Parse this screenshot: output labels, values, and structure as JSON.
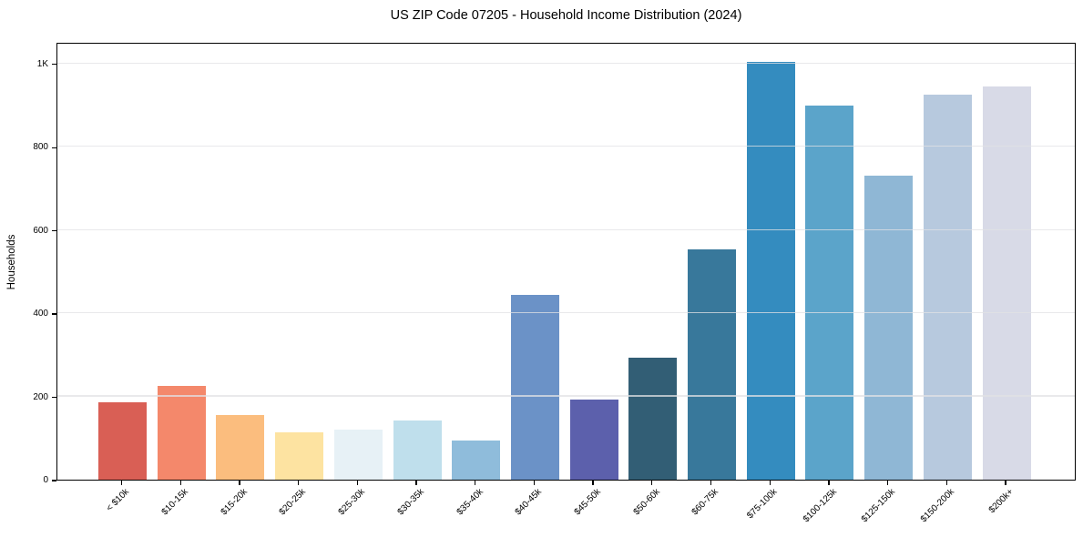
{
  "chart_data": {
    "type": "bar",
    "title": "US ZIP Code 07205 - Household Income Distribution (2024)",
    "xlabel": "",
    "ylabel": "Households",
    "categories": [
      "< $10k",
      "$10-15k",
      "$15-20k",
      "$20-25k",
      "$25-30k",
      "$30-35k",
      "$35-40k",
      "$40-45k",
      "$45-50k",
      "$50-60k",
      "$60-75k",
      "$75-100k",
      "$100-125k",
      "$125-150k",
      "$150-200k",
      "$200k+"
    ],
    "values": [
      185,
      225,
      155,
      113,
      120,
      142,
      95,
      445,
      193,
      293,
      553,
      1005,
      900,
      730,
      925,
      945
    ],
    "bar_colors": [
      "#d95f55",
      "#f4886b",
      "#fbbd7e",
      "#fde3a1",
      "#e7f1f6",
      "#bfdfec",
      "#8fbcdb",
      "#6b92c7",
      "#5c60ac",
      "#325e75",
      "#38789b",
      "#348cbf",
      "#5ba4ca",
      "#8fb7d5",
      "#b7c9de",
      "#d8dae7"
    ],
    "ylim": [
      0,
      1052
    ],
    "ytick_values": [
      0,
      200,
      400,
      600,
      800,
      1000
    ],
    "ytick_labels": [
      "0",
      "200",
      "400",
      "600",
      "800",
      "1K"
    ],
    "grid": "horizontal",
    "legend": "none",
    "background_color": "#ffffff",
    "axis_color": "#000000",
    "grid_color": "#e4e4e7"
  }
}
